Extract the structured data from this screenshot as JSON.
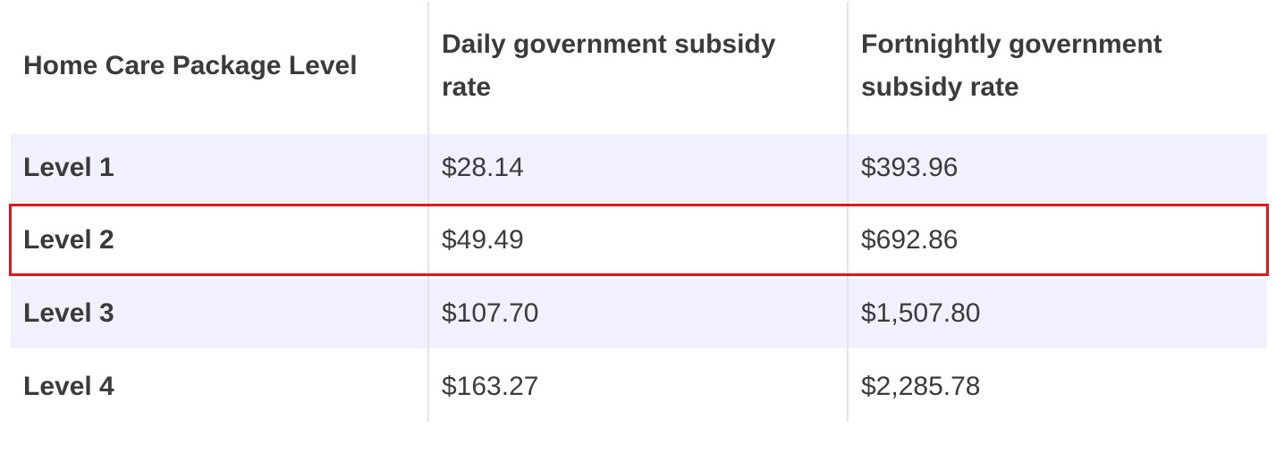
{
  "table": {
    "header": [
      "Home Care Package Level",
      "Daily government subsidy rate",
      "Fortnightly government subsidy rate"
    ],
    "rows": [
      [
        "Level 1",
        "$28.14",
        "$393.96"
      ],
      [
        "Level 2",
        "$49.49",
        "$692.86"
      ],
      [
        "Level 3",
        "$107.70",
        "$1,507.80"
      ],
      [
        "Level 4",
        "$163.27",
        "$2,285.78"
      ]
    ]
  }
}
